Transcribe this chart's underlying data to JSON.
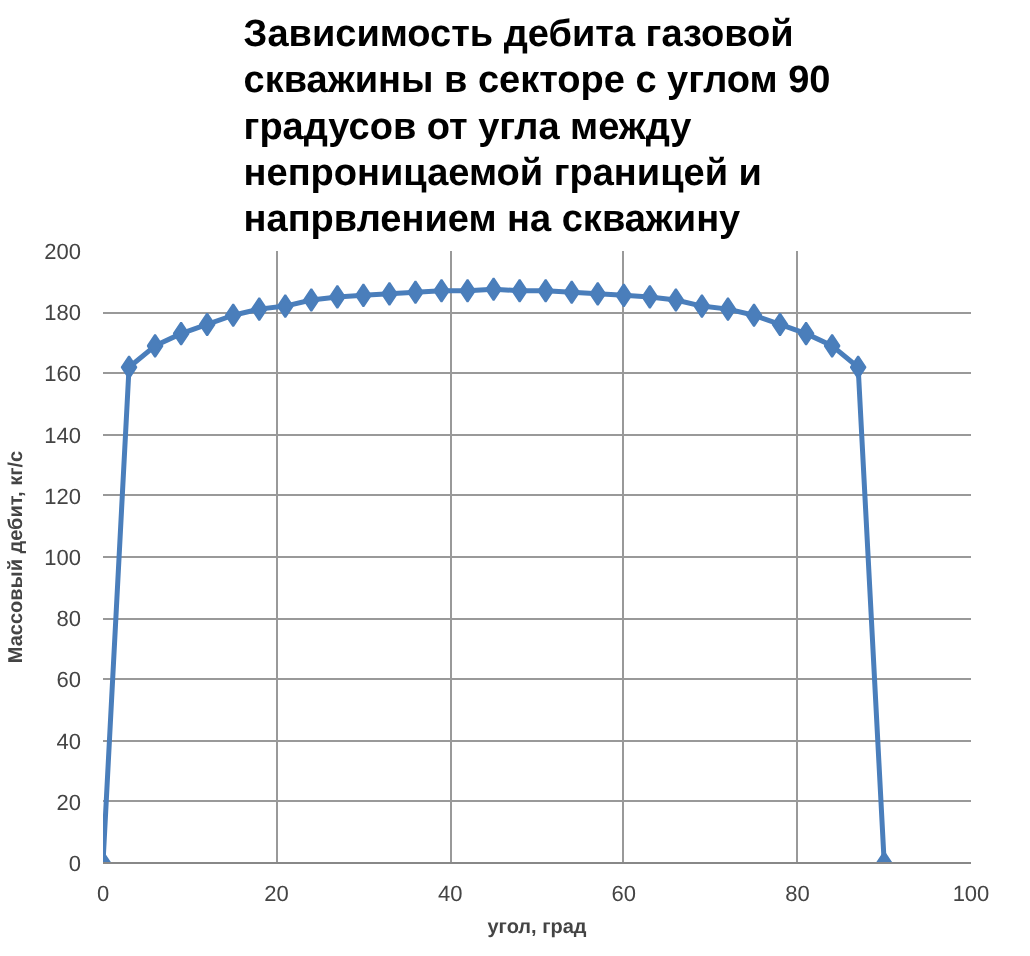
{
  "chart_data": {
    "type": "line",
    "title": "Зависимость дебита газовой\nскважины в секторе с углом 90\nградусов от угла между\nнепроницаемой границей и\nнапрвлением на скважину",
    "xlabel": "угол, град",
    "ylabel": "Массовый дебит, кг/с",
    "x": [
      0,
      3,
      6,
      9,
      12,
      15,
      18,
      21,
      24,
      27,
      30,
      33,
      36,
      39,
      42,
      45,
      48,
      51,
      54,
      57,
      60,
      63,
      66,
      69,
      72,
      75,
      78,
      81,
      84,
      87,
      90
    ],
    "series": [
      {
        "color": "#4a7ebb",
        "values": [
          0,
          162,
          169,
          173,
          176,
          179,
          181,
          182,
          184,
          185,
          185.5,
          186,
          186.5,
          187,
          187,
          187.5,
          187,
          187,
          186.5,
          186,
          185.5,
          185,
          184,
          182,
          181,
          179,
          176,
          173,
          169,
          162,
          0
        ]
      }
    ],
    "xlim": [
      0,
      100
    ],
    "xticks": [
      0,
      20,
      40,
      60,
      80,
      100
    ],
    "ylim": [
      0,
      200
    ],
    "yticks": [
      0,
      20,
      40,
      60,
      80,
      100,
      120,
      140,
      160,
      180,
      200
    ],
    "grid": true,
    "marker": "diamond",
    "line_style": "solid"
  }
}
